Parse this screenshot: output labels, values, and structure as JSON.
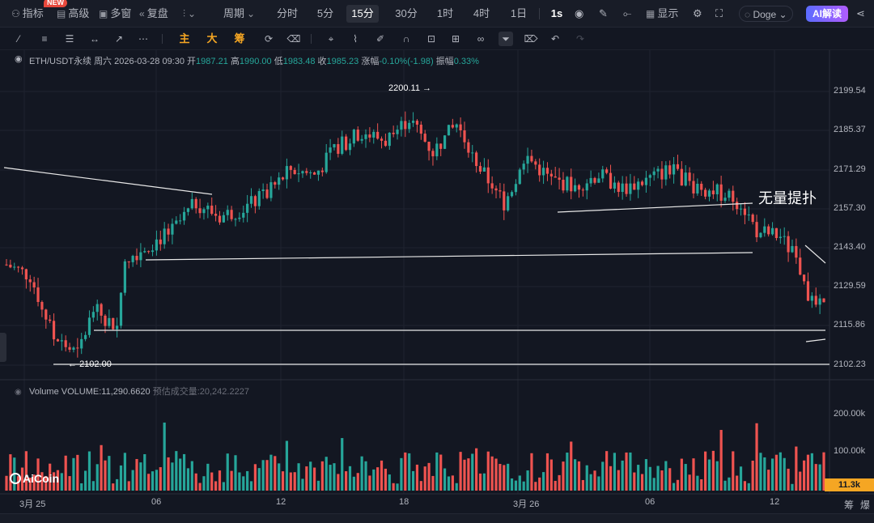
{
  "topbar": {
    "indicators_label": "指标",
    "new_badge": "NEW",
    "advanced_label": "高级",
    "multi_window_label": "多窗",
    "replay_label": "复盘",
    "period_label": "周期",
    "periods": [
      "分时",
      "5分",
      "15分",
      "30分",
      "1时",
      "4时",
      "1日"
    ],
    "active_period": "15分",
    "interval_1s": "1s",
    "display_label": "显示",
    "symbol_selector": "Doge",
    "ai_button": "AI解读"
  },
  "drawbar": {
    "tags": [
      "主",
      "大",
      "筹"
    ]
  },
  "legend": {
    "symbol": "ETH/USDT永续",
    "weekday": "周六",
    "datetime": "2026-03-28 09:30",
    "open_label": "开",
    "open": "1987.21",
    "high_label": "高",
    "high": "1990.00",
    "low_label": "低",
    "low": "1983.48",
    "close_label": "收",
    "close": "1985.23",
    "change_label": "涨幅",
    "change": "-0.10%(-1.98)",
    "amplitude_label": "振幅",
    "amplitude": "0.33%"
  },
  "volume_legend": {
    "name": "Volume",
    "value": "VOLUME:11,290.6620",
    "forecast_label": "预估成交量:",
    "forecast": "20,242.2227"
  },
  "price_axis": [
    "2199.54",
    "2185.37",
    "2171.29",
    "2157.30",
    "2143.40",
    "2129.59",
    "2115.86",
    "2102.23"
  ],
  "volume_axis": [
    "200.00k",
    "100.00k"
  ],
  "volume_tag": "11.3k",
  "time_axis": [
    "3月 25",
    "06",
    "12",
    "18",
    "3月 26",
    "06",
    "12"
  ],
  "annotations": {
    "high": "2200.11",
    "low": "2102.00",
    "drawing_text": "无量提扑"
  },
  "logo": "AiCoin",
  "right_tools": [
    "筹",
    "爆"
  ],
  "colors": {
    "up": "#26a69a",
    "down": "#ef5350",
    "accent": "#f5a623"
  },
  "chart_data": {
    "type": "candlestick",
    "price_ylim": [
      2095,
      2205
    ],
    "candles_from_index": 0,
    "bars": 128
  }
}
